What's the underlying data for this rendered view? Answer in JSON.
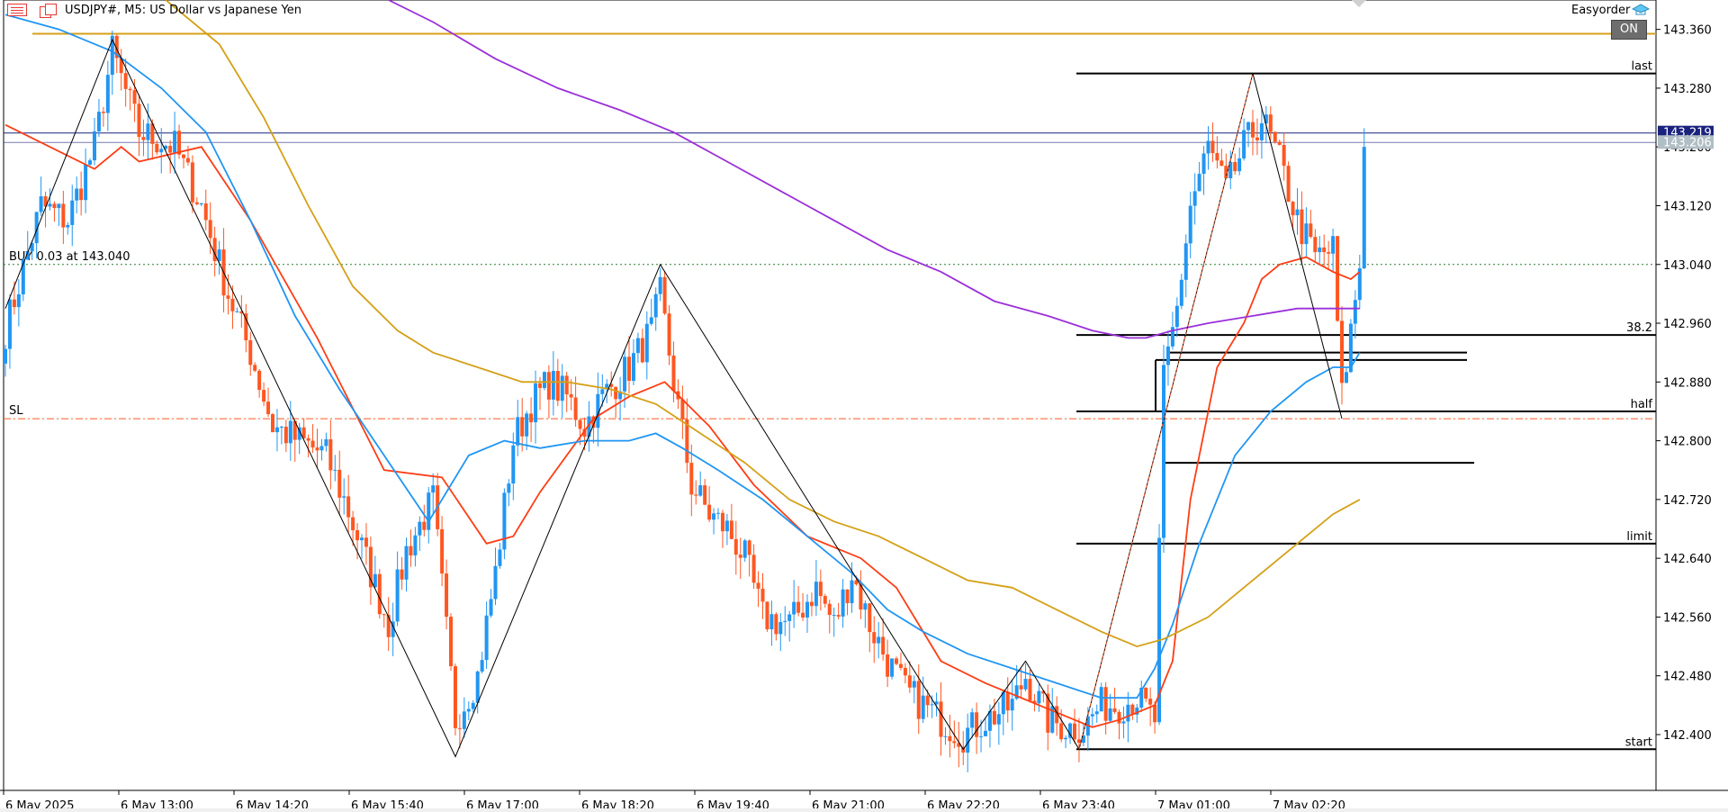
{
  "header": {
    "symbol_title": "USDJPY#, M5:  US Dollar vs Japanese Yen",
    "ea_name": "Easyorder",
    "ea_badge": "ON"
  },
  "colors": {
    "bull": "#2196f3",
    "bear": "#ff5722",
    "ma_fast": "#ff3d14",
    "ma_mid": "#2196f3",
    "ma_slow": "#d4a017",
    "ma_long": "#9b30d9",
    "zigzag": "#000000",
    "sl_line": "#ff5722",
    "entry_line": "#2e7d32",
    "top_line": "#d4a017",
    "price_line": "#1a237e"
  },
  "chart_data": {
    "type": "candlestick",
    "title": "USDJPY#, M5:  US Dollar vs Japanese Yen",
    "ylim": [
      142.324,
      143.4
    ],
    "y_ticks": [
      "143.360",
      "143.280",
      "143.200",
      "143.120",
      "143.040",
      "142.960",
      "142.880",
      "142.800",
      "142.720",
      "142.640",
      "142.560",
      "142.480",
      "142.400"
    ],
    "x_ticks": [
      "6 May 2025",
      "6 May 13:00",
      "6 May 14:20",
      "6 May 15:40",
      "6 May 17:00",
      "6 May 18:20",
      "6 May 19:40",
      "6 May 21:00",
      "6 May 22:20",
      "6 May 23:40",
      "7 May 01:00",
      "7 May 02:20"
    ],
    "current_price_labels": [
      "143.219",
      "143.206"
    ],
    "zigzag_points": [
      {
        "bar": 0,
        "price": 142.98
      },
      {
        "bar": 24,
        "price": 143.346
      },
      {
        "bar": 101,
        "price": 142.37
      },
      {
        "bar": 147,
        "price": 143.04
      },
      {
        "bar": 215,
        "price": 142.38
      },
      {
        "bar": 229,
        "price": 142.5
      },
      {
        "bar": 241,
        "price": 142.38
      },
      {
        "bar": 280,
        "price": 143.3
      },
      {
        "bar": 300,
        "price": 142.83
      }
    ],
    "levels": [
      {
        "label": "last",
        "price": 143.3
      },
      {
        "label": "38.2",
        "price": 142.944
      },
      {
        "label": "half",
        "price": 142.84
      },
      {
        "label": "limit",
        "price": 142.66
      },
      {
        "label": "start",
        "price": 142.38
      }
    ],
    "extra_lines": [
      142.92,
      142.91,
      142.77
    ],
    "order_lines": [
      {
        "label": "BUY 0.03 at 143.040",
        "price": 143.04,
        "style": "dotted",
        "color": "entry_line"
      },
      {
        "label": "SL",
        "price": 142.83,
        "style": "dashdot",
        "color": "sl_line"
      }
    ],
    "horizontal_lines": [
      {
        "price": 143.354,
        "color": "top_line"
      },
      {
        "price": 143.219,
        "color": "price_line"
      },
      {
        "price": 143.206,
        "color": "price_line"
      }
    ],
    "bar_count": 306,
    "anchors": [
      [
        0,
        142.95
      ],
      [
        8,
        143.12
      ],
      [
        14,
        143.1
      ],
      [
        20,
        143.2
      ],
      [
        24,
        143.33
      ],
      [
        30,
        143.22
      ],
      [
        38,
        143.2
      ],
      [
        44,
        143.12
      ],
      [
        50,
        143.0
      ],
      [
        55,
        142.92
      ],
      [
        60,
        142.82
      ],
      [
        66,
        142.8
      ],
      [
        72,
        142.78
      ],
      [
        76,
        142.72
      ],
      [
        82,
        142.62
      ],
      [
        86,
        142.55
      ],
      [
        90,
        142.65
      ],
      [
        96,
        142.72
      ],
      [
        101,
        142.42
      ],
      [
        106,
        142.48
      ],
      [
        110,
        142.62
      ],
      [
        114,
        142.8
      ],
      [
        118,
        142.85
      ],
      [
        122,
        142.88
      ],
      [
        126,
        142.86
      ],
      [
        130,
        142.82
      ],
      [
        134,
        142.86
      ],
      [
        140,
        142.9
      ],
      [
        145,
        142.95
      ],
      [
        147,
        143.0
      ],
      [
        150,
        142.88
      ],
      [
        154,
        142.74
      ],
      [
        158,
        142.7
      ],
      [
        162,
        142.68
      ],
      [
        166,
        142.64
      ],
      [
        170,
        142.56
      ],
      [
        176,
        142.55
      ],
      [
        182,
        142.6
      ],
      [
        186,
        142.55
      ],
      [
        190,
        142.62
      ],
      [
        194,
        142.55
      ],
      [
        198,
        142.5
      ],
      [
        202,
        142.46
      ],
      [
        206,
        142.44
      ],
      [
        210,
        142.42
      ],
      [
        215,
        142.4
      ],
      [
        220,
        142.42
      ],
      [
        226,
        142.44
      ],
      [
        229,
        142.48
      ],
      [
        234,
        142.42
      ],
      [
        238,
        142.41
      ],
      [
        242,
        142.41
      ],
      [
        246,
        142.44
      ],
      [
        250,
        142.44
      ],
      [
        254,
        142.45
      ],
      [
        258,
        142.42
      ],
      [
        260,
        142.88
      ],
      [
        263,
        142.98
      ],
      [
        266,
        143.12
      ],
      [
        270,
        143.2
      ],
      [
        274,
        143.14
      ],
      [
        278,
        143.2
      ],
      [
        282,
        143.24
      ],
      [
        286,
        143.18
      ],
      [
        290,
        143.1
      ],
      [
        294,
        143.05
      ],
      [
        298,
        143.06
      ],
      [
        300,
        142.86
      ],
      [
        302,
        142.95
      ],
      [
        304,
        143.04
      ],
      [
        305,
        143.2
      ]
    ],
    "moving_averages": [
      {
        "name": "ma_fast",
        "color": "ma_fast",
        "points": [
          [
            0,
            143.23
          ],
          [
            20,
            143.17
          ],
          [
            26,
            143.2
          ],
          [
            30,
            143.18
          ],
          [
            44,
            143.2
          ],
          [
            55,
            143.1
          ],
          [
            70,
            142.94
          ],
          [
            85,
            142.76
          ],
          [
            98,
            142.75
          ],
          [
            108,
            142.66
          ],
          [
            114,
            142.67
          ],
          [
            120,
            142.73
          ],
          [
            132,
            142.83
          ],
          [
            140,
            142.86
          ],
          [
            148,
            142.88
          ],
          [
            158,
            142.82
          ],
          [
            168,
            142.74
          ],
          [
            180,
            142.67
          ],
          [
            192,
            142.64
          ],
          [
            200,
            142.6
          ],
          [
            210,
            142.5
          ],
          [
            220,
            142.47
          ],
          [
            232,
            142.44
          ],
          [
            244,
            142.41
          ],
          [
            250,
            142.42
          ],
          [
            258,
            142.44
          ],
          [
            262,
            142.5
          ],
          [
            266,
            142.72
          ],
          [
            272,
            142.9
          ],
          [
            278,
            142.96
          ],
          [
            282,
            143.02
          ],
          [
            286,
            143.04
          ],
          [
            292,
            143.05
          ],
          [
            298,
            143.03
          ],
          [
            302,
            143.02
          ],
          [
            304,
            143.03
          ]
        ]
      },
      {
        "name": "ma_mid",
        "color": "ma_mid",
        "points": [
          [
            0,
            143.38
          ],
          [
            12,
            143.36
          ],
          [
            24,
            143.33
          ],
          [
            35,
            143.28
          ],
          [
            45,
            143.22
          ],
          [
            55,
            143.1
          ],
          [
            65,
            142.97
          ],
          [
            75,
            142.87
          ],
          [
            85,
            142.78
          ],
          [
            95,
            142.69
          ],
          [
            104,
            142.78
          ],
          [
            112,
            142.8
          ],
          [
            120,
            142.79
          ],
          [
            130,
            142.8
          ],
          [
            140,
            142.8
          ],
          [
            146,
            142.81
          ],
          [
            152,
            142.79
          ],
          [
            160,
            142.76
          ],
          [
            170,
            142.72
          ],
          [
            180,
            142.67
          ],
          [
            190,
            142.62
          ],
          [
            198,
            142.57
          ],
          [
            206,
            142.54
          ],
          [
            216,
            142.51
          ],
          [
            226,
            142.49
          ],
          [
            236,
            142.47
          ],
          [
            246,
            142.45
          ],
          [
            254,
            142.45
          ],
          [
            258,
            142.49
          ],
          [
            262,
            142.55
          ],
          [
            268,
            142.66
          ],
          [
            276,
            142.78
          ],
          [
            284,
            142.84
          ],
          [
            292,
            142.88
          ],
          [
            298,
            142.9
          ],
          [
            302,
            142.9
          ],
          [
            304,
            142.92
          ]
        ]
      },
      {
        "name": "ma_slow",
        "color": "ma_slow",
        "points": [
          [
            36,
            143.4
          ],
          [
            48,
            143.34
          ],
          [
            58,
            143.24
          ],
          [
            68,
            143.12
          ],
          [
            78,
            143.01
          ],
          [
            88,
            142.95
          ],
          [
            96,
            142.92
          ],
          [
            106,
            142.9
          ],
          [
            116,
            142.88
          ],
          [
            126,
            142.88
          ],
          [
            136,
            142.87
          ],
          [
            146,
            142.85
          ],
          [
            156,
            142.81
          ],
          [
            166,
            142.77
          ],
          [
            176,
            142.72
          ],
          [
            186,
            142.69
          ],
          [
            196,
            142.67
          ],
          [
            206,
            142.64
          ],
          [
            216,
            142.61
          ],
          [
            226,
            142.6
          ],
          [
            236,
            142.57
          ],
          [
            246,
            142.54
          ],
          [
            254,
            142.52
          ],
          [
            260,
            142.53
          ],
          [
            270,
            142.56
          ],
          [
            280,
            142.61
          ],
          [
            290,
            142.66
          ],
          [
            298,
            142.7
          ],
          [
            304,
            142.72
          ]
        ]
      },
      {
        "name": "ma_long",
        "color": "ma_long",
        "points": [
          [
            86,
            143.4
          ],
          [
            96,
            143.37
          ],
          [
            110,
            143.32
          ],
          [
            124,
            143.28
          ],
          [
            138,
            143.25
          ],
          [
            150,
            143.22
          ],
          [
            162,
            143.18
          ],
          [
            174,
            143.14
          ],
          [
            186,
            143.1
          ],
          [
            198,
            143.06
          ],
          [
            210,
            143.03
          ],
          [
            222,
            142.99
          ],
          [
            234,
            142.97
          ],
          [
            244,
            142.95
          ],
          [
            252,
            142.94
          ],
          [
            256,
            142.94
          ],
          [
            262,
            142.95
          ],
          [
            270,
            142.96
          ],
          [
            280,
            142.97
          ],
          [
            290,
            142.98
          ],
          [
            298,
            142.98
          ],
          [
            304,
            142.98
          ]
        ]
      }
    ]
  }
}
